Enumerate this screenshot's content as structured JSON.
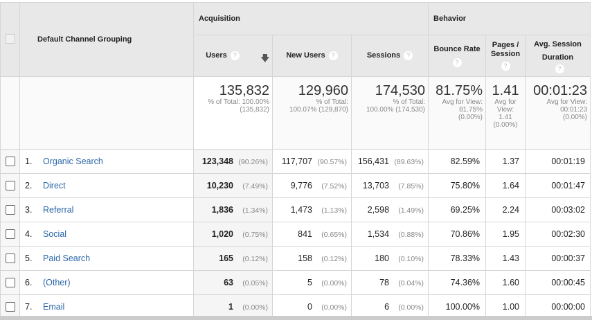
{
  "header": {
    "dimension": "Default Channel Grouping",
    "groups": {
      "acquisition": "Acquisition",
      "behavior": "Behavior"
    },
    "columns": {
      "users": "Users",
      "new_users": "New Users",
      "sessions": "Sessions",
      "bounce_rate": "Bounce Rate",
      "pages_session": "Pages / Session",
      "avg_duration": "Avg. Session Duration"
    },
    "help_icon": "?",
    "sort_icon": "arrow-down-icon"
  },
  "totals": {
    "users": {
      "value": "135,832",
      "line1": "% of Total: 100.00%",
      "line2": "(135,832)"
    },
    "new_users": {
      "value": "129,960",
      "line1": "% of Total:",
      "line2": "100.07% (129,870)"
    },
    "sessions": {
      "value": "174,530",
      "line1": "% of Total:",
      "line2": "100.00% (174,530)"
    },
    "bounce_rate": {
      "value": "81.75%",
      "line1": "Avg for View:",
      "line2": "81.75%",
      "line3": "(0.00%)"
    },
    "pages_session": {
      "value": "1.41",
      "line1": "Avg for",
      "line2": "View:",
      "line3": "1.41",
      "line4": "(0.00%)"
    },
    "avg_duration": {
      "value": "00:01:23",
      "line1": "Avg for View:",
      "line2": "00:01:23",
      "line3": "(0.00%)"
    }
  },
  "rows": [
    {
      "idx": "1.",
      "channel": "Organic Search",
      "users": "123,348",
      "users_pct": "(90.26%)",
      "new_users": "117,707",
      "new_users_pct": "(90.57%)",
      "sessions": "156,431",
      "sessions_pct": "(89.63%)",
      "bounce": "82.59%",
      "pages": "1.37",
      "duration": "00:01:19"
    },
    {
      "idx": "2.",
      "channel": "Direct",
      "users": "10,230",
      "users_pct": "(7.49%)",
      "new_users": "9,776",
      "new_users_pct": "(7.52%)",
      "sessions": "13,703",
      "sessions_pct": "(7.85%)",
      "bounce": "75.80%",
      "pages": "1.64",
      "duration": "00:01:47"
    },
    {
      "idx": "3.",
      "channel": "Referral",
      "users": "1,836",
      "users_pct": "(1.34%)",
      "new_users": "1,473",
      "new_users_pct": "(1.13%)",
      "sessions": "2,598",
      "sessions_pct": "(1.49%)",
      "bounce": "69.25%",
      "pages": "2.24",
      "duration": "00:03:02"
    },
    {
      "idx": "4.",
      "channel": "Social",
      "users": "1,020",
      "users_pct": "(0.75%)",
      "new_users": "841",
      "new_users_pct": "(0.65%)",
      "sessions": "1,534",
      "sessions_pct": "(0.88%)",
      "bounce": "70.86%",
      "pages": "1.95",
      "duration": "00:02:30"
    },
    {
      "idx": "5.",
      "channel": "Paid Search",
      "users": "165",
      "users_pct": "(0.12%)",
      "new_users": "158",
      "new_users_pct": "(0.12%)",
      "sessions": "180",
      "sessions_pct": "(0.10%)",
      "bounce": "78.33%",
      "pages": "1.43",
      "duration": "00:00:37"
    },
    {
      "idx": "6.",
      "channel": "(Other)",
      "users": "63",
      "users_pct": "(0.05%)",
      "new_users": "5",
      "new_users_pct": "(0.00%)",
      "sessions": "78",
      "sessions_pct": "(0.04%)",
      "bounce": "74.36%",
      "pages": "1.60",
      "duration": "00:00:45"
    },
    {
      "idx": "7.",
      "channel": "Email",
      "users": "1",
      "users_pct": "(0.00%)",
      "new_users": "0",
      "new_users_pct": "(0.00%)",
      "sessions": "6",
      "sessions_pct": "(0.00%)",
      "bounce": "100.00%",
      "pages": "1.00",
      "duration": "00:00:00"
    }
  ],
  "colors": {
    "link": "#2a66a8",
    "header_bg": "#e8e8e8",
    "border": "#d6d6d6"
  }
}
